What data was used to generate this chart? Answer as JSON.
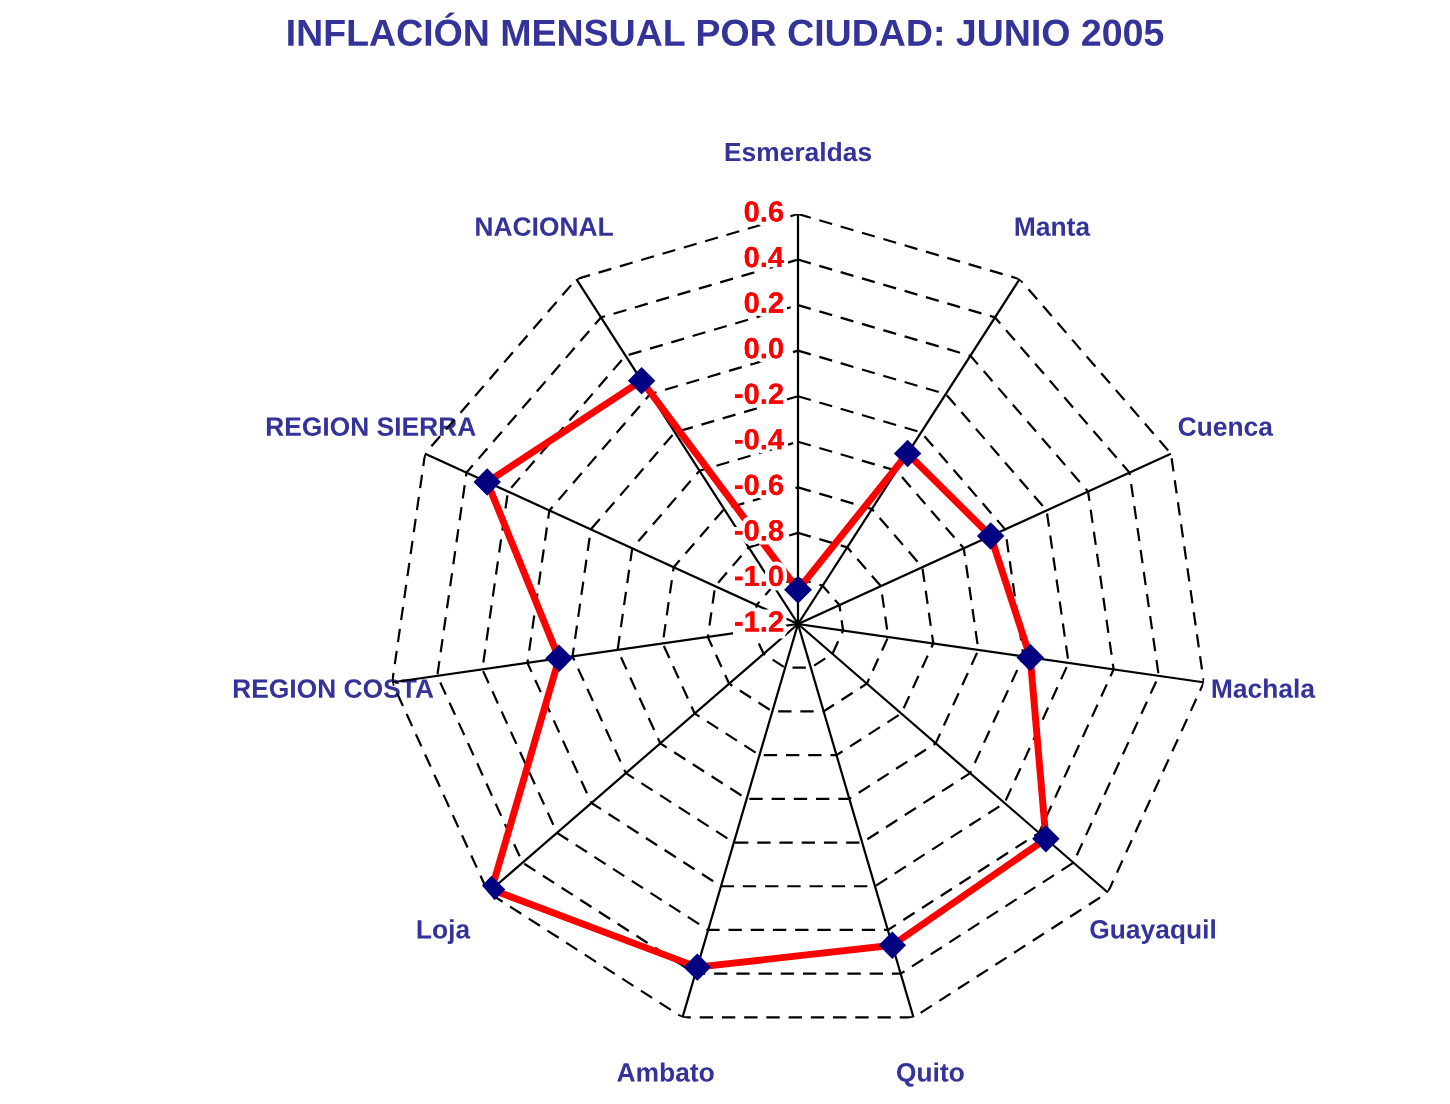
{
  "chart_data": {
    "type": "radar",
    "title": "INFLACIÓN MENSUAL POR CIUDAD: JUNIO 2005",
    "categories": [
      "Esmeraldas",
      "Manta",
      "Cuenca",
      "Machala",
      "Guayaquil",
      "Quito",
      "Ambato",
      "Loja",
      "REGION COSTA",
      "REGION SIERRA",
      "NACIONAL"
    ],
    "series": [
      {
        "color": "#ff0000",
        "values": [
          -1.05,
          -0.31,
          -0.27,
          -0.17,
          0.24,
          0.27,
          0.37,
          0.58,
          -0.14,
          0.3,
          0.07
        ]
      }
    ],
    "ylim": [
      -1.2,
      0.6
    ],
    "yticks": [
      {
        "value": -1.2,
        "label": "-1.2"
      },
      {
        "value": -1.0,
        "label": "-1.0"
      },
      {
        "value": -0.8,
        "label": "-0.8"
      },
      {
        "value": -0.6,
        "label": "-0.6"
      },
      {
        "value": -0.4,
        "label": "-0.4"
      },
      {
        "value": -0.2,
        "label": "-0.2"
      },
      {
        "value": 0,
        "label": "0.0"
      },
      {
        "value": 0.2,
        "label": "0.2"
      },
      {
        "value": 0.4,
        "label": "0.4"
      },
      {
        "value": 0.6,
        "label": "0.6"
      }
    ],
    "grid": true,
    "marker": "diamond",
    "line_style": "solid"
  }
}
